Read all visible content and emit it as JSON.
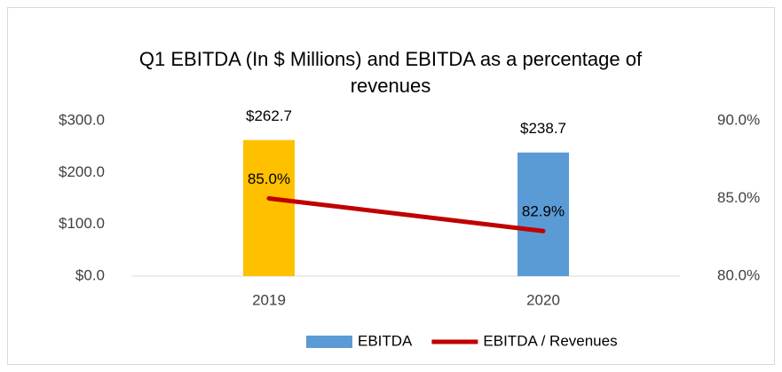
{
  "chart_data": {
    "type": "bar",
    "title": "Q1 EBITDA (In $ Millions) and EBITDA as a percentage of revenues",
    "categories": [
      "2019",
      "2020"
    ],
    "series": [
      {
        "name": "EBITDA",
        "type": "bar",
        "color": "#5b9bd5",
        "colors": [
          "#ffc000",
          "#5b9bd5"
        ],
        "values": [
          262.7,
          238.7
        ],
        "value_labels": [
          "$262.7",
          "$238.7"
        ]
      },
      {
        "name": "EBITDA / Revenues",
        "type": "line",
        "axis": "y2",
        "color": "#c00000",
        "values": [
          85.0,
          82.9
        ],
        "value_labels": [
          "85.0%",
          "82.9%"
        ]
      }
    ],
    "ylim": [
      0,
      300
    ],
    "yticks": [
      {
        "value": 0,
        "label": "$0.0"
      },
      {
        "value": 100,
        "label": "$100.0"
      },
      {
        "value": 200,
        "label": "$200.0"
      },
      {
        "value": 300,
        "label": "$300.0"
      }
    ],
    "y2lim": [
      80,
      90
    ],
    "y2ticks": [
      {
        "value": 80,
        "label": "80.0%"
      },
      {
        "value": 85,
        "label": "85.0%"
      },
      {
        "value": 90,
        "label": "90.0%"
      }
    ],
    "grid": false,
    "legend": "bottom"
  }
}
